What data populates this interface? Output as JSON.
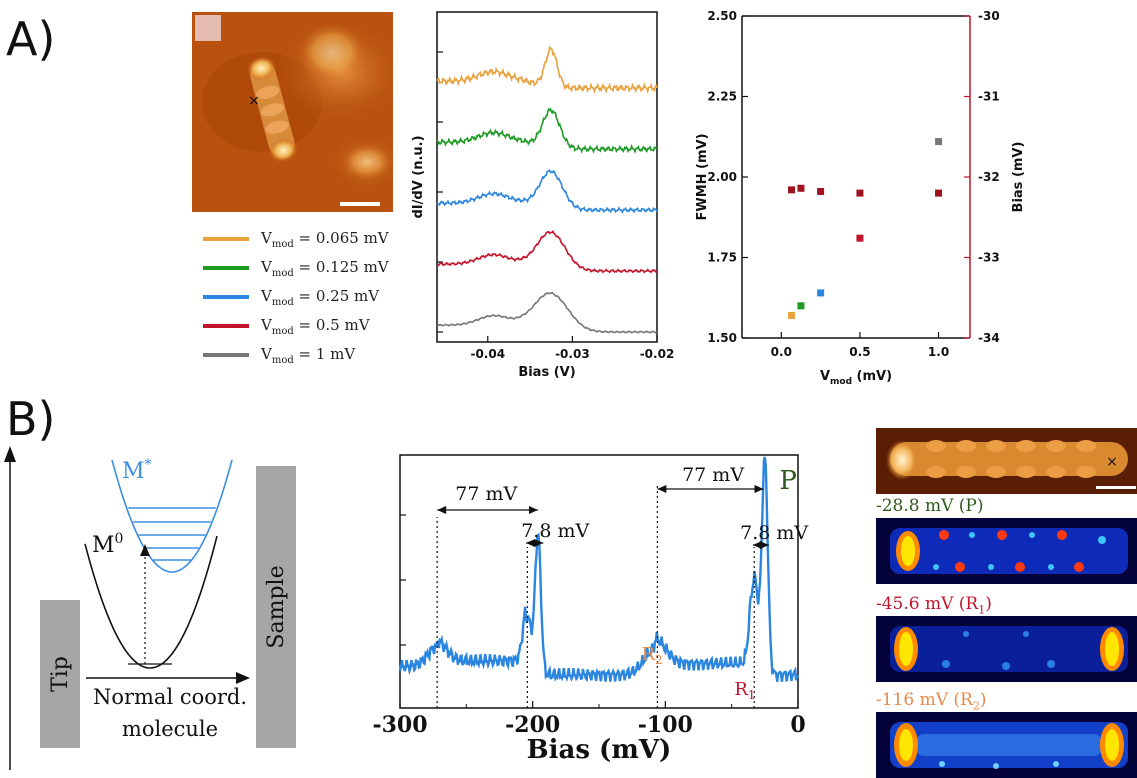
{
  "panel_a_label": "A)",
  "panel_b_label": "B)",
  "legend": [
    {
      "label": "V",
      "sub": "mod",
      "rest": " = 0.065 mV",
      "color": "#e8a13c"
    },
    {
      "label": "V",
      "sub": "mod",
      "rest": " = 0.125 mV",
      "color": "#1f9a26"
    },
    {
      "label": "V",
      "sub": "mod",
      "rest": " = 0.25 mV",
      "color": "#2b86e0"
    },
    {
      "label": "V",
      "sub": "mod",
      "rest": " = 0.5 mV",
      "color": "#c4142c"
    },
    {
      "label": "V",
      "sub": "mod",
      "rest": " = 1 mV",
      "color": "#777777"
    }
  ],
  "diagram": {
    "m_star": "M",
    "m_star_sup": "*",
    "m_zero": "M",
    "m_zero_sup": "0",
    "tip": "Tip",
    "sample": "Sample",
    "normal_coord_1": "Normal coord.",
    "normal_coord_2": "molecule"
  },
  "maps": [
    {
      "label": "-28.8 mV (P)",
      "color": "#2f5a1e"
    },
    {
      "label": "-45.6 mV (R",
      "sub": "1",
      "close": ")",
      "color": "#c4142c"
    },
    {
      "label": "-116 mV (R",
      "sub": "2",
      "close": ")",
      "color": "#e8894a"
    }
  ],
  "chart_data": [
    {
      "type": "line",
      "xlabel": "Bias (V)",
      "ylabel": "dI/dV (n.u.)",
      "xlim": [
        -0.046,
        -0.02
      ],
      "xticks": [
        "-0.04",
        "-0.03",
        "-0.02"
      ],
      "series": [
        {
          "name": "V_mod = 0.065 mV",
          "color": "#e8a13c",
          "offset": 4
        },
        {
          "name": "V_mod = 0.125 mV",
          "color": "#1f9a26",
          "offset": 3
        },
        {
          "name": "V_mod = 0.25 mV",
          "color": "#2b86e0",
          "offset": 2
        },
        {
          "name": "V_mod = 0.5 mV",
          "color": "#c4142c",
          "offset": 1
        },
        {
          "name": "V_mod = 1 mV",
          "color": "#777777",
          "offset": 0
        }
      ]
    },
    {
      "type": "scatter",
      "xlabel": "V",
      "xlabel_sub": "mod",
      "xlabel_rest": " (mV)",
      "ylabel_left": "FWMH (mV)",
      "ylabel_right": "Bias (mV)",
      "xlim": [
        -0.25,
        1.2
      ],
      "ylim_left": [
        1.5,
        2.5
      ],
      "ylim_right": [
        -34,
        -30
      ],
      "xticks": [
        "0.0",
        "0.5",
        "1.0"
      ],
      "yticks_left": [
        "1.50",
        "1.75",
        "2.00",
        "2.25",
        "2.50"
      ],
      "yticks_right": [
        "-34",
        "-33",
        "-32",
        "-31",
        "-30"
      ],
      "fwhm_points": [
        {
          "x": 0.065,
          "y": 1.57,
          "color": "#e8a13c"
        },
        {
          "x": 0.125,
          "y": 1.6,
          "color": "#1f9a26"
        },
        {
          "x": 0.25,
          "y": 1.64,
          "color": "#2b86e0"
        },
        {
          "x": 0.5,
          "y": 1.81,
          "color": "#c4142c"
        },
        {
          "x": 1.0,
          "y": 2.11,
          "color": "#777777"
        }
      ],
      "bias_points": [
        {
          "x": 0.065,
          "y": -32.16
        },
        {
          "x": 0.125,
          "y": -32.14
        },
        {
          "x": 0.25,
          "y": -32.18
        },
        {
          "x": 0.5,
          "y": -32.2
        },
        {
          "x": 1.0,
          "y": -32.2
        }
      ]
    },
    {
      "type": "line",
      "xlabel": "Bias (mV)",
      "xlim": [
        -300,
        0
      ],
      "xticks": [
        "-300",
        "-200",
        "-100",
        "0"
      ],
      "annotations": {
        "gap_left": "77 mV",
        "gap_right": "77 mV",
        "split_left": "7.8 mV",
        "split_right": "7.8 mV",
        "peak_p": "P",
        "peak_r1": "R",
        "peak_r1_sub": "1",
        "peak_r2": "R",
        "peak_r2_sub": "2"
      }
    }
  ]
}
